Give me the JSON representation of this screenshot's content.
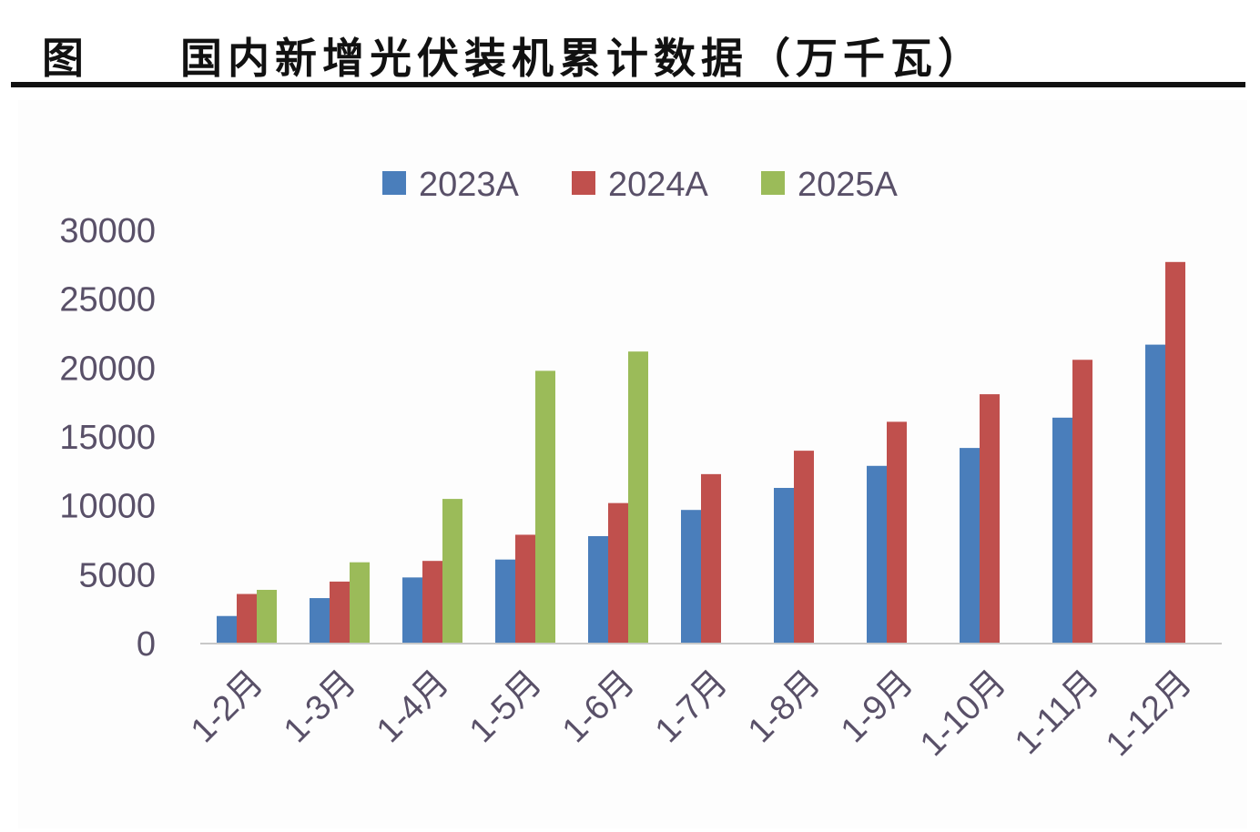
{
  "header": {
    "figure_label": "图",
    "title": "国内新增光伏装机累计数据（万千瓦）"
  },
  "colors": {
    "series_2023": "#4a7ebb",
    "series_2024": "#c0504d",
    "series_2025": "#9bbb59",
    "axis_text": "#595068",
    "title_rule": "#111111"
  },
  "chart_data": {
    "type": "bar",
    "title": "",
    "xlabel": "",
    "ylabel": "",
    "ylim": [
      0,
      30000
    ],
    "yticks": [
      0,
      5000,
      10000,
      15000,
      20000,
      25000,
      30000
    ],
    "legend_position": "top",
    "grid": false,
    "categories": [
      "1-2月",
      "1-3月",
      "1-4月",
      "1-5月",
      "1-6月",
      "1-7月",
      "1-8月",
      "1-9月",
      "1-10月",
      "1-11月",
      "1-12月"
    ],
    "series": [
      {
        "name": "2023A",
        "color": "#4a7ebb",
        "values": [
          2000,
          3300,
          4800,
          6100,
          7800,
          9700,
          11300,
          12900,
          14200,
          16400,
          21700
        ]
      },
      {
        "name": "2024A",
        "color": "#c0504d",
        "values": [
          3600,
          4500,
          6000,
          7900,
          10200,
          12300,
          14000,
          16100,
          18100,
          20600,
          27700
        ]
      },
      {
        "name": "2025A",
        "color": "#9bbb59",
        "values": [
          3900,
          5900,
          10500,
          19800,
          21200,
          null,
          null,
          null,
          null,
          null,
          null
        ]
      }
    ]
  }
}
